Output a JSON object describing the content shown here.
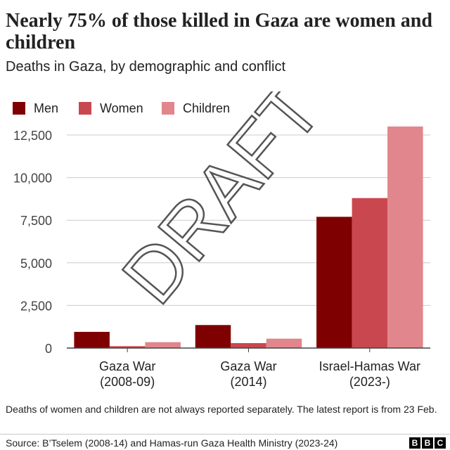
{
  "title": "Nearly 75% of those killed in Gaza are women and children",
  "subtitle": "Deaths in Gaza, by demographic and conflict",
  "watermark": "DRAFT",
  "footnote": "Deaths of women and children are not always reported separately. The latest report is from 23 Feb.",
  "source": "Source: B’Tselem (2008-14) and Hamas-run Gaza Health Ministry (2023-24)",
  "logo": [
    "B",
    "B",
    "C"
  ],
  "chart_data": {
    "type": "bar",
    "categories": [
      [
        "Gaza War",
        "(2008-09)"
      ],
      [
        "Gaza War",
        "(2014)"
      ],
      [
        "Israel-Hamas War",
        "(2023-)"
      ]
    ],
    "series": [
      {
        "name": "Men",
        "color": "#7f0000",
        "values": [
          950,
          1350,
          7700
        ]
      },
      {
        "name": "Women",
        "color": "#c9474f",
        "values": [
          110,
          290,
          8800
        ]
      },
      {
        "name": "Children",
        "color": "#e0868c",
        "values": [
          345,
          550,
          13000
        ]
      }
    ],
    "yticks": [
      0,
      2500,
      5000,
      7500,
      10000,
      12500
    ],
    "ytick_labels": [
      "0",
      "2,500",
      "5,000",
      "7,500",
      "10,000",
      "12,500"
    ],
    "ylim": [
      0,
      13500
    ],
    "legend_position": "top-left",
    "grid": true
  }
}
